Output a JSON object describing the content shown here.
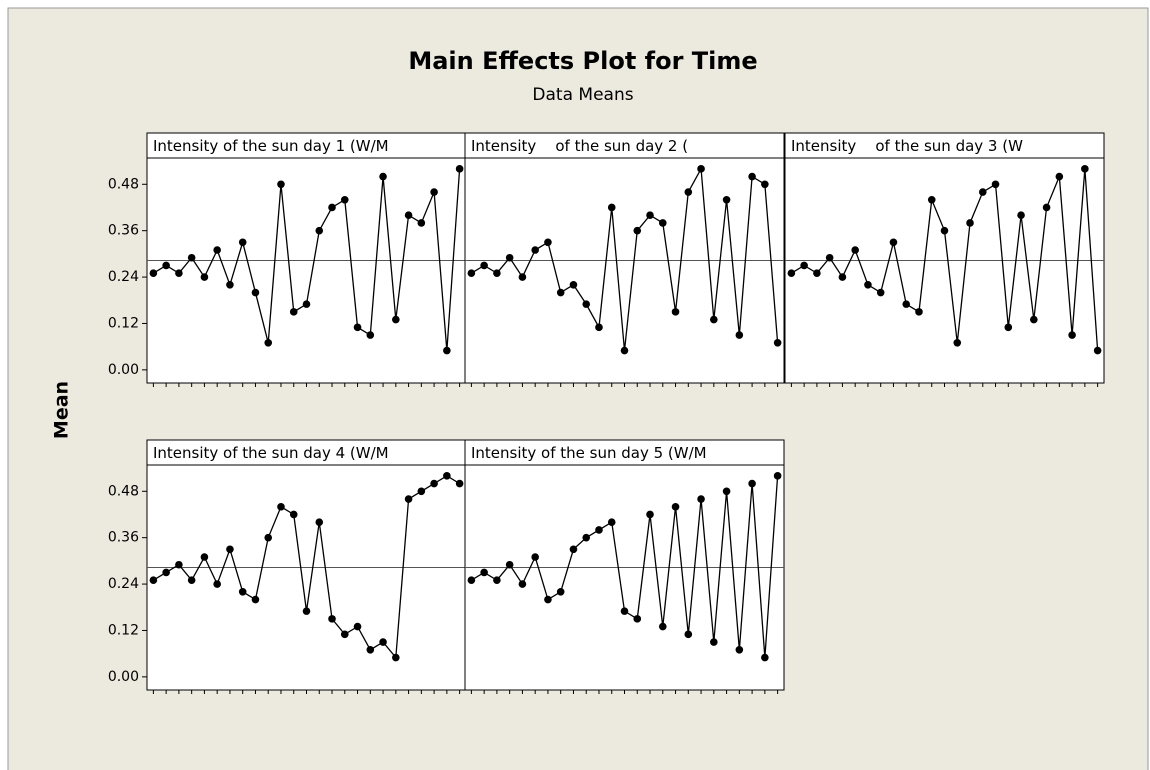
{
  "figure": {
    "title": "Main Effects Plot for Time",
    "subtitle": "Data Means",
    "ylabel": "Mean"
  },
  "chart_data": [
    {
      "type": "line",
      "title": "Intensity of the sun day 1 (W/M",
      "categories": [
        null,
        null,
        null,
        null,
        null,
        null,
        null,
        null,
        null,
        null,
        null,
        null,
        null,
        null,
        null,
        null,
        null,
        null,
        null,
        null,
        null,
        null,
        null,
        null,
        null
      ],
      "values": [
        0.25,
        0.27,
        0.25,
        0.29,
        0.24,
        0.31,
        0.22,
        0.33,
        0.2,
        0.07,
        0.48,
        0.15,
        0.17,
        0.36,
        0.42,
        0.44,
        0.11,
        0.09,
        0.5,
        0.13,
        0.4,
        0.38,
        0.46,
        0.05,
        0.52
      ],
      "color": "#000000",
      "reference_line": 0.283,
      "ylim": [
        -0.034,
        0.548
      ],
      "yticks": [
        {
          "value": 0,
          "label": "0.00"
        },
        0.12,
        0.24,
        0.36,
        0.48
      ]
    },
    {
      "type": "line",
      "title": "Intensity    of the sun day 2 (",
      "categories": [
        null,
        null,
        null,
        null,
        null,
        null,
        null,
        null,
        null,
        null,
        null,
        null,
        null,
        null,
        null,
        null,
        null,
        null,
        null,
        null,
        null,
        null,
        null,
        null,
        null
      ],
      "values": [
        0.25,
        0.27,
        0.25,
        0.29,
        0.24,
        0.31,
        0.33,
        0.2,
        0.22,
        0.17,
        0.11,
        0.42,
        0.05,
        0.36,
        0.4,
        0.38,
        0.15,
        0.46,
        0.52,
        0.13,
        0.44,
        0.09,
        0.5,
        0.48,
        0.07
      ],
      "color": "#000000",
      "reference_line": 0.283,
      "ylim": [
        -0.034,
        0.548
      ]
    },
    {
      "type": "line",
      "title": "Intensity    of the sun day 3 (W",
      "categories": [
        null,
        null,
        null,
        null,
        null,
        null,
        null,
        null,
        null,
        null,
        null,
        null,
        null,
        null,
        null,
        null,
        null,
        null,
        null,
        null,
        null,
        null,
        null,
        null,
        null
      ],
      "values": [
        0.25,
        0.27,
        0.25,
        0.29,
        0.24,
        0.31,
        0.22,
        0.2,
        0.33,
        0.17,
        0.15,
        0.44,
        0.36,
        0.07,
        0.38,
        0.46,
        0.48,
        0.11,
        0.4,
        0.13,
        0.42,
        0.5,
        0.09,
        0.52,
        0.05
      ],
      "color": "#000000",
      "reference_line": 0.283,
      "ylim": [
        -0.034,
        0.548
      ]
    },
    {
      "type": "line",
      "title": "Intensity of the sun day 4 (W/M",
      "categories": [
        null,
        null,
        null,
        null,
        null,
        null,
        null,
        null,
        null,
        null,
        null,
        null,
        null,
        null,
        null,
        null,
        null,
        null,
        null,
        null,
        null,
        null,
        null,
        null,
        null
      ],
      "values": [
        0.25,
        0.27,
        0.29,
        0.25,
        0.31,
        0.24,
        0.33,
        0.22,
        0.2,
        0.36,
        0.44,
        0.42,
        0.17,
        0.4,
        0.15,
        0.11,
        0.13,
        0.07,
        0.09,
        0.05,
        0.46,
        0.48,
        0.5,
        0.52,
        0.5
      ],
      "color": "#000000",
      "reference_line": 0.283,
      "ylim": [
        -0.034,
        0.548
      ],
      "yticks": [
        {
          "value": 0,
          "label": "0.00"
        },
        0.12,
        0.24,
        0.36,
        0.48
      ]
    },
    {
      "type": "line",
      "title": "Intensity of the sun day 5 (W/M",
      "categories": [
        null,
        null,
        null,
        null,
        null,
        null,
        null,
        null,
        null,
        null,
        null,
        null,
        null,
        null,
        null,
        null,
        null,
        null,
        null,
        null,
        null,
        null,
        null,
        null,
        null
      ],
      "values": [
        0.25,
        0.27,
        0.25,
        0.29,
        0.24,
        0.31,
        0.2,
        0.22,
        0.33,
        0.36,
        0.38,
        0.4,
        0.17,
        0.15,
        0.42,
        0.13,
        0.44,
        0.11,
        0.46,
        0.09,
        0.48,
        0.07,
        0.5,
        0.05,
        0.52
      ],
      "color": "#000000",
      "reference_line": 0.283,
      "ylim": [
        -0.034,
        0.548
      ]
    }
  ]
}
